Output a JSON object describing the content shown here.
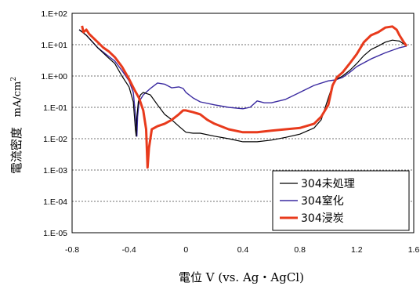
{
  "chart_data": {
    "type": "line",
    "xlabel": "電位 V (vs. Ag・AgCl)",
    "ylabel": "電流密度",
    "ylabel_unit": "mA/cm",
    "ylabel_unit_sup": "2",
    "y_scale": "log",
    "xlim": [
      -0.8,
      1.6
    ],
    "ylim": [
      1e-05,
      100
    ],
    "x_ticks": [
      "-0.8",
      "-0.4",
      "0",
      "0.4",
      "0.8",
      "1.2",
      "1.6"
    ],
    "x_tick_values": [
      -0.8,
      -0.4,
      0,
      0.4,
      0.8,
      1.2,
      1.6
    ],
    "y_ticks": [
      "1.E-05",
      "1.E-04",
      "1.E-03",
      "1.E-02",
      "1.E-01",
      "1.E+00",
      "1.E+01",
      "1.E+02"
    ],
    "y_tick_values": [
      1e-05,
      0.0001,
      0.001,
      0.01,
      0.1,
      1,
      10,
      100
    ],
    "grid": "horizontal dashed",
    "legend_position": "bottom-right",
    "series": [
      {
        "name": "304未処理",
        "color": "#000000",
        "stroke_width": 1.2,
        "points": [
          [
            -0.75,
            30
          ],
          [
            -0.7,
            20
          ],
          [
            -0.62,
            8
          ],
          [
            -0.55,
            4
          ],
          [
            -0.5,
            2.5
          ],
          [
            -0.45,
            1
          ],
          [
            -0.4,
            0.45
          ],
          [
            -0.37,
            0.15
          ],
          [
            -0.355,
            0.02
          ],
          [
            -0.35,
            0.012
          ],
          [
            -0.345,
            0.05
          ],
          [
            -0.335,
            0.15
          ],
          [
            -0.32,
            0.25
          ],
          [
            -0.3,
            0.3
          ],
          [
            -0.25,
            0.25
          ],
          [
            -0.2,
            0.12
          ],
          [
            -0.15,
            0.06
          ],
          [
            -0.1,
            0.04
          ],
          [
            -0.05,
            0.025
          ],
          [
            0,
            0.016
          ],
          [
            0.05,
            0.015
          ],
          [
            0.1,
            0.015
          ],
          [
            0.2,
            0.012
          ],
          [
            0.3,
            0.01
          ],
          [
            0.4,
            0.008
          ],
          [
            0.5,
            0.008
          ],
          [
            0.6,
            0.009
          ],
          [
            0.7,
            0.011
          ],
          [
            0.8,
            0.014
          ],
          [
            0.9,
            0.022
          ],
          [
            0.95,
            0.04
          ],
          [
            1.0,
            0.2
          ],
          [
            1.03,
            0.5
          ],
          [
            1.06,
            0.8
          ],
          [
            1.1,
            1.0
          ],
          [
            1.15,
            1.5
          ],
          [
            1.2,
            2.5
          ],
          [
            1.25,
            4.5
          ],
          [
            1.3,
            7
          ],
          [
            1.35,
            9
          ],
          [
            1.4,
            12
          ],
          [
            1.45,
            14
          ],
          [
            1.5,
            13
          ],
          [
            1.55,
            9
          ]
        ]
      },
      {
        "name": "304窒化",
        "color": "#3a2aa0",
        "stroke_width": 1.4,
        "points": [
          [
            -0.75,
            30
          ],
          [
            -0.7,
            20
          ],
          [
            -0.62,
            8
          ],
          [
            -0.55,
            4.5
          ],
          [
            -0.5,
            3
          ],
          [
            -0.45,
            1.5
          ],
          [
            -0.4,
            0.7
          ],
          [
            -0.37,
            0.3
          ],
          [
            -0.355,
            0.06
          ],
          [
            -0.345,
            0.012
          ],
          [
            -0.34,
            0.05
          ],
          [
            -0.33,
            0.15
          ],
          [
            -0.3,
            0.25
          ],
          [
            -0.25,
            0.4
          ],
          [
            -0.2,
            0.6
          ],
          [
            -0.15,
            0.55
          ],
          [
            -0.1,
            0.42
          ],
          [
            -0.05,
            0.45
          ],
          [
            -0.02,
            0.4
          ],
          [
            0,
            0.3
          ],
          [
            0.05,
            0.2
          ],
          [
            0.1,
            0.15
          ],
          [
            0.2,
            0.12
          ],
          [
            0.3,
            0.1
          ],
          [
            0.4,
            0.09
          ],
          [
            0.45,
            0.1
          ],
          [
            0.5,
            0.16
          ],
          [
            0.55,
            0.14
          ],
          [
            0.6,
            0.14
          ],
          [
            0.7,
            0.18
          ],
          [
            0.8,
            0.3
          ],
          [
            0.9,
            0.5
          ],
          [
            1.0,
            0.7
          ],
          [
            1.05,
            0.75
          ],
          [
            1.1,
            0.9
          ],
          [
            1.15,
            1.3
          ],
          [
            1.2,
            2.0
          ],
          [
            1.3,
            3.5
          ],
          [
            1.4,
            5.5
          ],
          [
            1.5,
            8
          ],
          [
            1.55,
            9
          ]
        ]
      },
      {
        "name": "304浸炭",
        "color": "#e83a1c",
        "stroke_width": 3,
        "points": [
          [
            -0.73,
            40
          ],
          [
            -0.72,
            25
          ],
          [
            -0.7,
            30
          ],
          [
            -0.68,
            22
          ],
          [
            -0.66,
            18
          ],
          [
            -0.62,
            12
          ],
          [
            -0.58,
            8
          ],
          [
            -0.54,
            6
          ],
          [
            -0.5,
            4
          ],
          [
            -0.45,
            2
          ],
          [
            -0.4,
            0.8
          ],
          [
            -0.36,
            0.35
          ],
          [
            -0.33,
            0.2
          ],
          [
            -0.3,
            0.08
          ],
          [
            -0.28,
            0.02
          ],
          [
            -0.27,
            0.0012
          ],
          [
            -0.26,
            0.005
          ],
          [
            -0.24,
            0.02
          ],
          [
            -0.2,
            0.025
          ],
          [
            -0.15,
            0.03
          ],
          [
            -0.1,
            0.04
          ],
          [
            -0.05,
            0.06
          ],
          [
            -0.02,
            0.08
          ],
          [
            0,
            0.08
          ],
          [
            0.05,
            0.07
          ],
          [
            0.1,
            0.06
          ],
          [
            0.15,
            0.04
          ],
          [
            0.2,
            0.03
          ],
          [
            0.3,
            0.02
          ],
          [
            0.4,
            0.016
          ],
          [
            0.5,
            0.016
          ],
          [
            0.6,
            0.018
          ],
          [
            0.7,
            0.02
          ],
          [
            0.8,
            0.022
          ],
          [
            0.9,
            0.03
          ],
          [
            0.95,
            0.05
          ],
          [
            1.0,
            0.12
          ],
          [
            1.03,
            0.5
          ],
          [
            1.06,
            0.9
          ],
          [
            1.1,
            1.3
          ],
          [
            1.15,
            2.5
          ],
          [
            1.2,
            5
          ],
          [
            1.25,
            12
          ],
          [
            1.3,
            20
          ],
          [
            1.35,
            25
          ],
          [
            1.4,
            35
          ],
          [
            1.45,
            38
          ],
          [
            1.48,
            30
          ],
          [
            1.5,
            20
          ],
          [
            1.53,
            12
          ],
          [
            1.55,
            9
          ]
        ]
      }
    ]
  }
}
